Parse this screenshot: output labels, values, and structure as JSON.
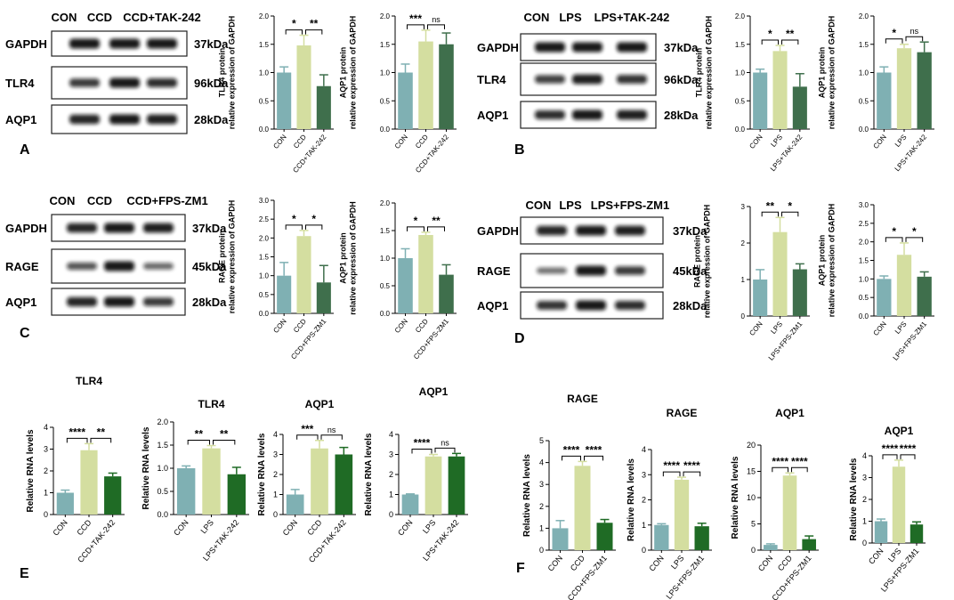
{
  "colors": {
    "con": "#7fb0b3",
    "treat": "#d4dea0",
    "inhib_blot": "#3f6f4c",
    "inhib_rna": "#1f6b25",
    "band": "#111111"
  },
  "panels": {
    "A": "A",
    "B": "B",
    "C": "C",
    "D": "D",
    "E": "E",
    "F": "F"
  },
  "blots": [
    {
      "panel": "A",
      "headers": [
        "CON",
        "CCD",
        "CCD+TAK-242"
      ],
      "rows": [
        {
          "label": "GAPDH",
          "kda": "37kDa"
        },
        {
          "label": "TLR4",
          "kda": "96kDa"
        },
        {
          "label": "AQP1",
          "kda": "28kDa"
        }
      ]
    },
    {
      "panel": "B",
      "headers": [
        "CON",
        "LPS",
        "LPS+TAK-242"
      ],
      "rows": [
        {
          "label": "GAPDH",
          "kda": "37kDa"
        },
        {
          "label": "TLR4",
          "kda": "96kDa"
        },
        {
          "label": "AQP1",
          "kda": "28kDa"
        }
      ]
    },
    {
      "panel": "C",
      "headers": [
        "CON",
        "CCD",
        "CCD+FPS-ZM1"
      ],
      "rows": [
        {
          "label": "GAPDH",
          "kda": "37kDa"
        },
        {
          "label": "RAGE",
          "kda": "45kDa"
        },
        {
          "label": "AQP1",
          "kda": "28kDa"
        }
      ]
    },
    {
      "panel": "D",
      "headers": [
        "CON",
        "LPS",
        "LPS+FPS-ZM1"
      ],
      "rows": [
        {
          "label": "GAPDH",
          "kda": "37kDa"
        },
        {
          "label": "RAGE",
          "kda": "45kDa"
        },
        {
          "label": "AQP1",
          "kda": "28kDa"
        }
      ]
    }
  ],
  "chart_data": [
    {
      "type": "bar",
      "panel": "A",
      "title": "",
      "ylabel": "TLR4 protein\nrelative expression of GAPDH",
      "categories": [
        "CON",
        "CCD",
        "CCD+TAK-242"
      ],
      "values": [
        1.0,
        1.48,
        0.76
      ],
      "errors": [
        0.1,
        0.18,
        0.2
      ],
      "ylim": [
        0,
        2.0
      ],
      "yticks": [
        "0.0",
        "0.5",
        "1.0",
        "1.5",
        "2.0"
      ],
      "sig": [
        {
          "a": 0,
          "b": 1,
          "label": "*"
        },
        {
          "a": 1,
          "b": 2,
          "label": "**"
        }
      ]
    },
    {
      "type": "bar",
      "panel": "A",
      "title": "",
      "ylabel": "AQP1 protein\nrelative expression of GAPDH",
      "categories": [
        "CON",
        "CCD",
        "CCD+TAK-242"
      ],
      "values": [
        1.0,
        1.55,
        1.5
      ],
      "errors": [
        0.15,
        0.2,
        0.2
      ],
      "ylim": [
        0,
        2.0
      ],
      "yticks": [
        "0.0",
        "0.5",
        "1.0",
        "1.5",
        "2.0"
      ],
      "sig": [
        {
          "a": 0,
          "b": 1,
          "label": "***"
        },
        {
          "a": 1,
          "b": 2,
          "label": "ns"
        }
      ]
    },
    {
      "type": "bar",
      "panel": "B",
      "title": "",
      "ylabel": "TLR4 protein\nrelative expression of GAPDH",
      "categories": [
        "CON",
        "LPS",
        "LPS+TAK-242"
      ],
      "values": [
        1.0,
        1.38,
        0.75
      ],
      "errors": [
        0.06,
        0.1,
        0.23
      ],
      "ylim": [
        0,
        2.0
      ],
      "yticks": [
        "0.0",
        "0.5",
        "1.0",
        "1.5",
        "2.0"
      ],
      "sig": [
        {
          "a": 0,
          "b": 1,
          "label": "*"
        },
        {
          "a": 1,
          "b": 2,
          "label": "**"
        }
      ]
    },
    {
      "type": "bar",
      "panel": "B",
      "title": "",
      "ylabel": "AQP1 protein\nrelative expression of GAPDH",
      "categories": [
        "CON",
        "LPS",
        "LPS+TAK-242"
      ],
      "values": [
        1.0,
        1.43,
        1.36
      ],
      "errors": [
        0.1,
        0.07,
        0.18
      ],
      "ylim": [
        0,
        2.0
      ],
      "yticks": [
        "0.0",
        "0.5",
        "1.0",
        "1.5",
        "2.0"
      ],
      "sig": [
        {
          "a": 0,
          "b": 1,
          "label": "*"
        },
        {
          "a": 1,
          "b": 2,
          "label": "ns"
        }
      ]
    },
    {
      "type": "bar",
      "panel": "C",
      "title": "",
      "ylabel": "RAGE protein\nrelative expression of GAPDH",
      "categories": [
        "CON",
        "CCD",
        "CCD+FPS-ZM1"
      ],
      "values": [
        1.0,
        2.05,
        0.82
      ],
      "errors": [
        0.35,
        0.15,
        0.45
      ],
      "ylim": [
        0,
        3.0
      ],
      "yticks": [
        "0.0",
        "0.5",
        "1.0",
        "1.5",
        "2.0",
        "2.5",
        "3.0"
      ],
      "sig": [
        {
          "a": 0,
          "b": 1,
          "label": "*"
        },
        {
          "a": 1,
          "b": 2,
          "label": "*"
        }
      ]
    },
    {
      "type": "bar",
      "panel": "C",
      "title": "",
      "ylabel": "AQP1 protein\nrelative expression of GAPDH",
      "categories": [
        "CON",
        "CCD",
        "CCD+FPS-ZM1"
      ],
      "values": [
        1.0,
        1.42,
        0.7
      ],
      "errors": [
        0.17,
        0.05,
        0.18
      ],
      "ylim": [
        0,
        2.0
      ],
      "yticks": [
        "0.0",
        "0.5",
        "1.0",
        "1.5",
        "2.0"
      ],
      "sig": [
        {
          "a": 0,
          "b": 1,
          "label": "*"
        },
        {
          "a": 1,
          "b": 2,
          "label": "**"
        }
      ]
    },
    {
      "type": "bar",
      "panel": "D",
      "title": "",
      "ylabel": "RAGE protein\nrelative expression of GAPDH",
      "categories": [
        "CON",
        "LPS",
        "LPS+FPS-ZM1"
      ],
      "values": [
        1.0,
        2.3,
        1.28
      ],
      "errors": [
        0.27,
        0.4,
        0.15
      ],
      "ylim": [
        0,
        3
      ],
      "yticks": [
        "0",
        "1",
        "2",
        "3"
      ],
      "sig": [
        {
          "a": 0,
          "b": 1,
          "label": "**"
        },
        {
          "a": 1,
          "b": 2,
          "label": "*"
        }
      ]
    },
    {
      "type": "bar",
      "panel": "D",
      "title": "",
      "ylabel": "AQP1 protein\nrelative expression of GAPDH",
      "categories": [
        "CON",
        "LPS",
        "LPS+FPS-ZM1"
      ],
      "values": [
        1.0,
        1.65,
        1.06
      ],
      "errors": [
        0.08,
        0.32,
        0.13
      ],
      "ylim": [
        0,
        3.0
      ],
      "yticks": [
        "0.0",
        "0.5",
        "1.0",
        "1.5",
        "2.0",
        "2.5",
        "3.0"
      ],
      "sig": [
        {
          "a": 0,
          "b": 1,
          "label": "*"
        },
        {
          "a": 1,
          "b": 2,
          "label": "*"
        }
      ]
    },
    {
      "type": "bar",
      "panel": "E",
      "title": "TLR4",
      "ylabel": "Relative RNA levels",
      "categories": [
        "CON",
        "CCD",
        "CCD+TAK-242"
      ],
      "values": [
        1.0,
        2.95,
        1.75
      ],
      "errors": [
        0.12,
        0.3,
        0.15
      ],
      "ylim": [
        0,
        4
      ],
      "yticks": [
        "0",
        "1",
        "2",
        "3",
        "4"
      ],
      "sig": [
        {
          "a": 0,
          "b": 1,
          "label": "****"
        },
        {
          "a": 1,
          "b": 2,
          "label": "**"
        }
      ]
    },
    {
      "type": "bar",
      "panel": "E",
      "title": "TLR4",
      "ylabel": "Relative RNA levels",
      "categories": [
        "CON",
        "LPS",
        "LPS+TAK-242"
      ],
      "values": [
        1.0,
        1.43,
        0.87
      ],
      "errors": [
        0.05,
        0.06,
        0.15
      ],
      "ylim": [
        0,
        2.0
      ],
      "yticks": [
        "0.0",
        "0.5",
        "1.0",
        "1.5",
        "2.0"
      ],
      "sig": [
        {
          "a": 0,
          "b": 1,
          "label": "**"
        },
        {
          "a": 1,
          "b": 2,
          "label": "**"
        }
      ]
    },
    {
      "type": "bar",
      "panel": "E",
      "title": "AQP1",
      "ylabel": "Relative RNA levels",
      "categories": [
        "CON",
        "CCD",
        "CCD+TAK-242"
      ],
      "values": [
        1.0,
        3.3,
        3.0
      ],
      "errors": [
        0.25,
        0.4,
        0.35
      ],
      "ylim": [
        0,
        4
      ],
      "yticks": [
        "0",
        "1",
        "2",
        "3",
        "4"
      ],
      "sig": [
        {
          "a": 0,
          "b": 1,
          "label": "***"
        },
        {
          "a": 1,
          "b": 2,
          "label": "ns"
        }
      ]
    },
    {
      "type": "bar",
      "panel": "E",
      "title": "AQP1",
      "ylabel": "Relative RNA levels",
      "categories": [
        "CON",
        "LPS",
        "LPS+TAK-242"
      ],
      "values": [
        1.0,
        2.9,
        2.9
      ],
      "errors": [
        0.03,
        0.1,
        0.15
      ],
      "ylim": [
        0,
        4
      ],
      "yticks": [
        "0",
        "1",
        "2",
        "3",
        "4"
      ],
      "sig": [
        {
          "a": 0,
          "b": 1,
          "label": "****"
        },
        {
          "a": 1,
          "b": 2,
          "label": "ns"
        }
      ]
    },
    {
      "type": "bar",
      "panel": "F",
      "title": "RAGE",
      "ylabel": "Relative RNA levels",
      "categories": [
        "CON",
        "CCD",
        "CCD+FPS-ZM1"
      ],
      "values": [
        1.0,
        3.85,
        1.25
      ],
      "errors": [
        0.35,
        0.2,
        0.15
      ],
      "ylim": [
        0,
        5
      ],
      "yticks": [
        "0",
        "1",
        "2",
        "3",
        "4",
        "5"
      ],
      "sig": [
        {
          "a": 0,
          "b": 1,
          "label": "****"
        },
        {
          "a": 1,
          "b": 2,
          "label": "****"
        }
      ]
    },
    {
      "type": "bar",
      "panel": "F",
      "title": "RAGE",
      "ylabel": "Relative RNA levels",
      "categories": [
        "CON",
        "LPS",
        "LPS+FPS-ZM1"
      ],
      "values": [
        1.0,
        2.8,
        0.95
      ],
      "errors": [
        0.05,
        0.1,
        0.12
      ],
      "ylim": [
        0,
        4
      ],
      "yticks": [
        "0",
        "1",
        "2",
        "3",
        "4"
      ],
      "sig": [
        {
          "a": 0,
          "b": 1,
          "label": "****"
        },
        {
          "a": 1,
          "b": 2,
          "label": "****"
        }
      ]
    },
    {
      "type": "bar",
      "panel": "F",
      "title": "AQP1",
      "ylabel": "Relative RNA levels",
      "categories": [
        "CON",
        "CCD",
        "CCD+FPS-ZM1"
      ],
      "values": [
        1.0,
        14.2,
        2.1
      ],
      "errors": [
        0.2,
        0.5,
        0.6
      ],
      "ylim": [
        0,
        20
      ],
      "yticks": [
        "0",
        "5",
        "10",
        "15",
        "20"
      ],
      "sig": [
        {
          "a": 0,
          "b": 1,
          "label": "****"
        },
        {
          "a": 1,
          "b": 2,
          "label": "****"
        }
      ]
    },
    {
      "type": "bar",
      "panel": "F",
      "title": "AQP1",
      "ylabel": "Relative RNA levels",
      "categories": [
        "CON",
        "LPS",
        "LPS+FPS-ZM1"
      ],
      "values": [
        1.0,
        3.5,
        0.85
      ],
      "errors": [
        0.1,
        0.3,
        0.12
      ],
      "ylim": [
        0,
        4
      ],
      "yticks": [
        "0",
        "1",
        "2",
        "3",
        "4"
      ],
      "sig": [
        {
          "a": 0,
          "b": 1,
          "label": "****"
        },
        {
          "a": 1,
          "b": 2,
          "label": "****"
        }
      ]
    }
  ]
}
